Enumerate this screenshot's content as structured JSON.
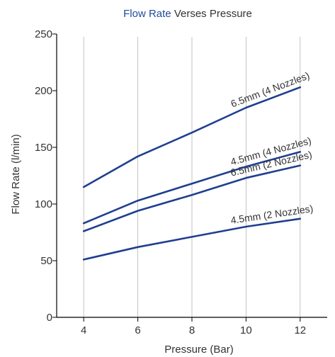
{
  "chart_data": {
    "type": "line",
    "title_parts": [
      {
        "text": "Flow Rate",
        "color": "#1f4b9c"
      },
      {
        "text": " Verses Pressure",
        "color": "#333333"
      }
    ],
    "xlabel": "Pressure (Bar)",
    "ylabel": "Flow Rate (l/min)",
    "x": [
      4,
      6,
      8,
      10,
      12
    ],
    "x_ticks": [
      4,
      6,
      8,
      10,
      12
    ],
    "y_ticks": [
      0,
      50,
      100,
      150,
      200,
      250
    ],
    "xlim": [
      3,
      13
    ],
    "ylim": [
      0,
      250
    ],
    "grid": "vertical",
    "line_color": "#1f3f8f",
    "series": [
      {
        "name": "6.5mm (4 Nozzles)",
        "values": [
          115,
          142,
          163,
          185,
          203
        ]
      },
      {
        "name": "4.5mm (4 Nozzles)",
        "values": [
          83,
          103,
          118,
          133,
          146
        ]
      },
      {
        "name": "6.5mm (2 Nozzles)",
        "values": [
          76,
          94,
          108,
          123,
          134
        ]
      },
      {
        "name": "4.5mm (2 Nozzles)",
        "values": [
          51,
          62,
          71,
          80,
          87
        ]
      }
    ]
  }
}
